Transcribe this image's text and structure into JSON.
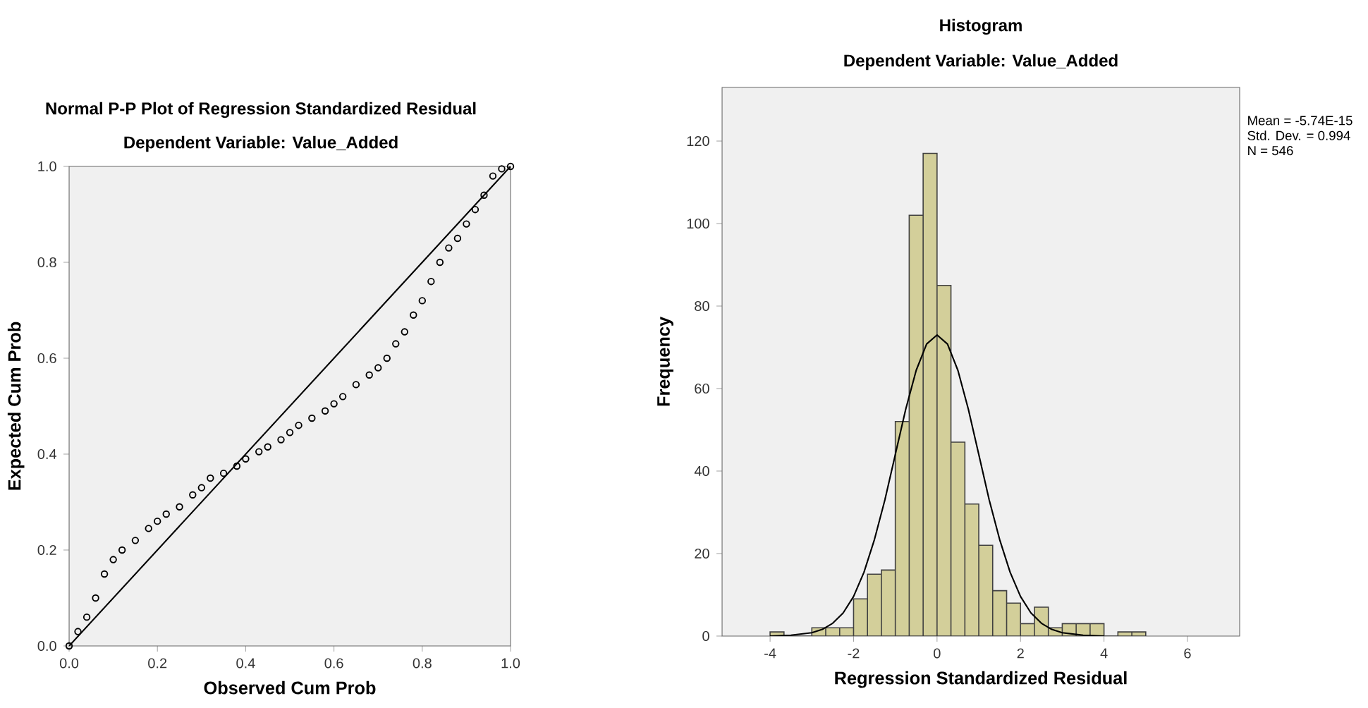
{
  "chart_data": [
    {
      "type": "scatter",
      "title": "Normal P-P Plot of Regression Standardized Residual",
      "subtitle": "Dependent Variable: Value_Added",
      "xlabel": "Observed Cum Prob",
      "ylabel": "Expected Cum Prob",
      "xlim": [
        0,
        1
      ],
      "ylim": [
        0,
        1
      ],
      "xticks": [
        {
          "value": 0,
          "label": "0.0"
        },
        {
          "value": 0.2,
          "label": "0.2"
        },
        {
          "value": 0.4,
          "label": "0.4"
        },
        {
          "value": 0.6,
          "label": "0.6"
        },
        {
          "value": 0.8,
          "label": "0.8"
        },
        {
          "value": 1,
          "label": "1.0"
        }
      ],
      "yticks": [
        {
          "value": 0,
          "label": "0.0"
        },
        {
          "value": 0.2,
          "label": "0.2"
        },
        {
          "value": 0.4,
          "label": "0.4"
        },
        {
          "value": 0.6,
          "label": "0.6"
        },
        {
          "value": 0.8,
          "label": "0.8"
        },
        {
          "value": 1,
          "label": "1.0"
        }
      ],
      "series": [
        {
          "type": "scatter",
          "marker": "circle",
          "color": "#000000",
          "x": [
            0,
            0.02,
            0.04,
            0.06,
            0.08,
            0.1,
            0.12,
            0.15,
            0.18,
            0.2,
            0.22,
            0.25,
            0.28,
            0.3,
            0.32,
            0.35,
            0.38,
            0.4,
            0.43,
            0.45,
            0.48,
            0.5,
            0.52,
            0.55,
            0.58,
            0.6,
            0.62,
            0.65,
            0.68,
            0.7,
            0.72,
            0.74,
            0.76,
            0.78,
            0.8,
            0.82,
            0.84,
            0.86,
            0.88,
            0.9,
            0.92,
            0.94,
            0.96,
            0.98,
            1
          ],
          "values": [
            0,
            0.03,
            0.06,
            0.1,
            0.15,
            0.18,
            0.2,
            0.22,
            0.245,
            0.26,
            0.275,
            0.29,
            0.315,
            0.33,
            0.35,
            0.36,
            0.375,
            0.39,
            0.405,
            0.415,
            0.43,
            0.445,
            0.46,
            0.475,
            0.49,
            0.505,
            0.52,
            0.545,
            0.565,
            0.58,
            0.6,
            0.63,
            0.655,
            0.69,
            0.72,
            0.76,
            0.8,
            0.83,
            0.85,
            0.88,
            0.91,
            0.94,
            0.98,
            0.995,
            1
          ]
        },
        {
          "type": "line",
          "marker": "none",
          "color": "#000000",
          "x": [
            0,
            1
          ],
          "values": [
            0,
            1
          ]
        }
      ]
    },
    {
      "type": "histogram",
      "title": "Histogram",
      "subtitle": "Dependent Variable: Value_Added",
      "xlabel": "Regression Standardized Residual",
      "ylabel": "Frequency",
      "annotations": [
        "Mean = -5.74E-15",
        "Std. Dev. = 0.994",
        "N = 546"
      ],
      "xlim": [
        -5.15,
        7.25
      ],
      "ylim": [
        0,
        133
      ],
      "xticks": [
        -4,
        -2,
        0,
        2,
        4,
        6
      ],
      "yticks": [
        0,
        20,
        40,
        60,
        80,
        100,
        120
      ],
      "color": "#d3cf9a",
      "bins": [
        -4,
        -3.667,
        -3.333,
        -3,
        -2.667,
        -2.333,
        -2,
        -1.667,
        -1.333,
        -1,
        -0.667,
        -0.333,
        0,
        0.333,
        0.667,
        1,
        1.333,
        1.667,
        2,
        2.333,
        2.667,
        3,
        3.333,
        3.667,
        4,
        4.333,
        4.667,
        5
      ],
      "values": [
        1,
        0,
        0,
        2,
        2,
        2,
        9,
        15,
        16,
        52,
        102,
        117,
        85,
        47,
        32,
        22,
        11,
        8,
        3,
        7,
        2,
        3,
        3,
        3,
        0,
        1,
        1
      ],
      "series": [
        {
          "type": "line",
          "color": "#000000",
          "x": [
            -4,
            -3.5,
            -3,
            -2.75,
            -2.5,
            -2.25,
            -2,
            -1.75,
            -1.5,
            -1.25,
            -1,
            -0.75,
            -0.5,
            -0.25,
            0,
            0.25,
            0.5,
            0.75,
            1,
            1.25,
            1.5,
            1.75,
            2,
            2.25,
            2.5,
            2.75,
            3,
            3.5,
            4
          ],
          "values": [
            0,
            0.2,
            0.8,
            1.6,
            3.1,
            5.6,
            9.6,
            15.5,
            23.4,
            33,
            44,
            55,
            64.4,
            70.8,
            73,
            70.8,
            64.4,
            55,
            44,
            33,
            23.4,
            15.5,
            9.6,
            5.6,
            3.1,
            1.6,
            0.8,
            0.2,
            0
          ]
        }
      ]
    }
  ]
}
